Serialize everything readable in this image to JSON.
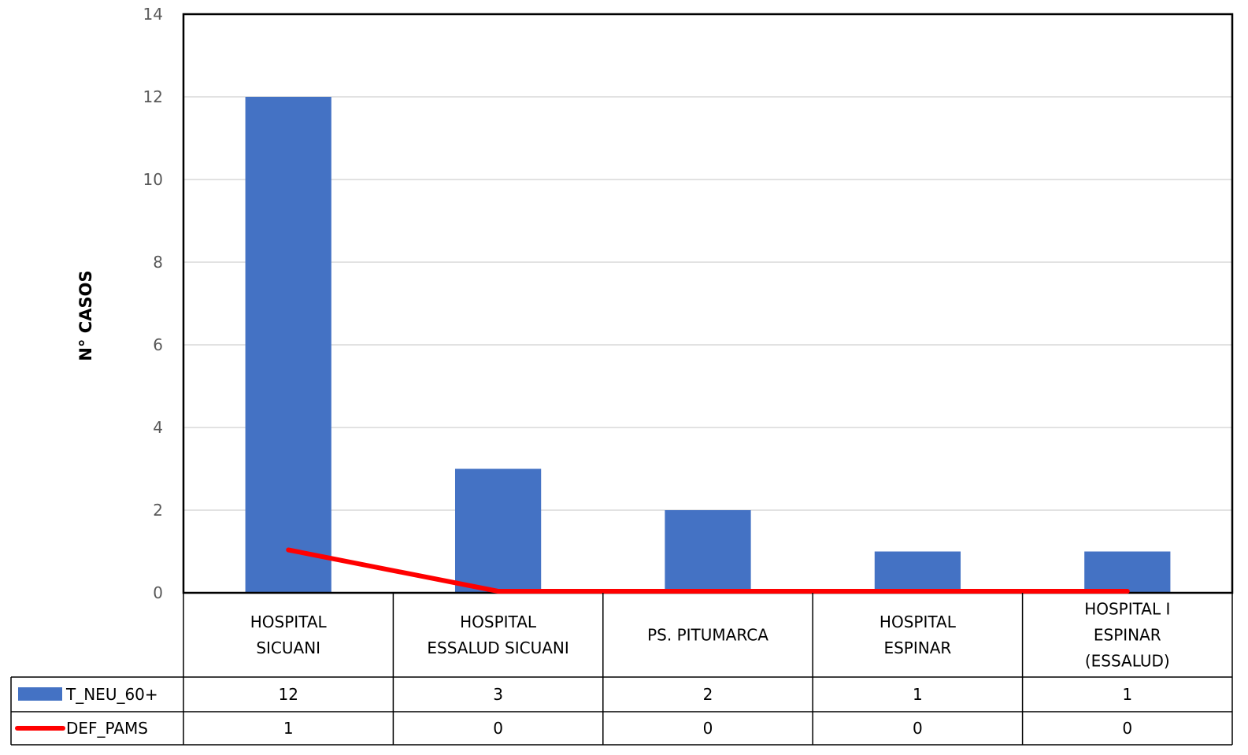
{
  "chart_data": {
    "type": "bar",
    "categories": [
      [
        "HOSPITAL",
        "SICUANI"
      ],
      [
        "HOSPITAL",
        "ESSALUD SICUANI"
      ],
      [
        "PS. PITUMARCA"
      ],
      [
        "HOSPITAL",
        "ESPINAR"
      ],
      [
        "HOSPITAL I",
        "ESPINAR",
        "(ESSALUD)"
      ]
    ],
    "series": [
      {
        "name": "T_NEU_60+",
        "type": "bar",
        "color": "#4472C4",
        "values": [
          12,
          3,
          2,
          1,
          1
        ]
      },
      {
        "name": "DEF_PAMS",
        "type": "line",
        "color": "#FF0000",
        "values": [
          1,
          0,
          0,
          0,
          0
        ]
      }
    ],
    "ylabel": "N° CASOS",
    "xlabel": "",
    "title": "",
    "ylim": [
      0,
      14
    ],
    "yticks": [
      0,
      2,
      4,
      6,
      8,
      10,
      12,
      14
    ],
    "grid": true,
    "legend": "data-table-left"
  }
}
